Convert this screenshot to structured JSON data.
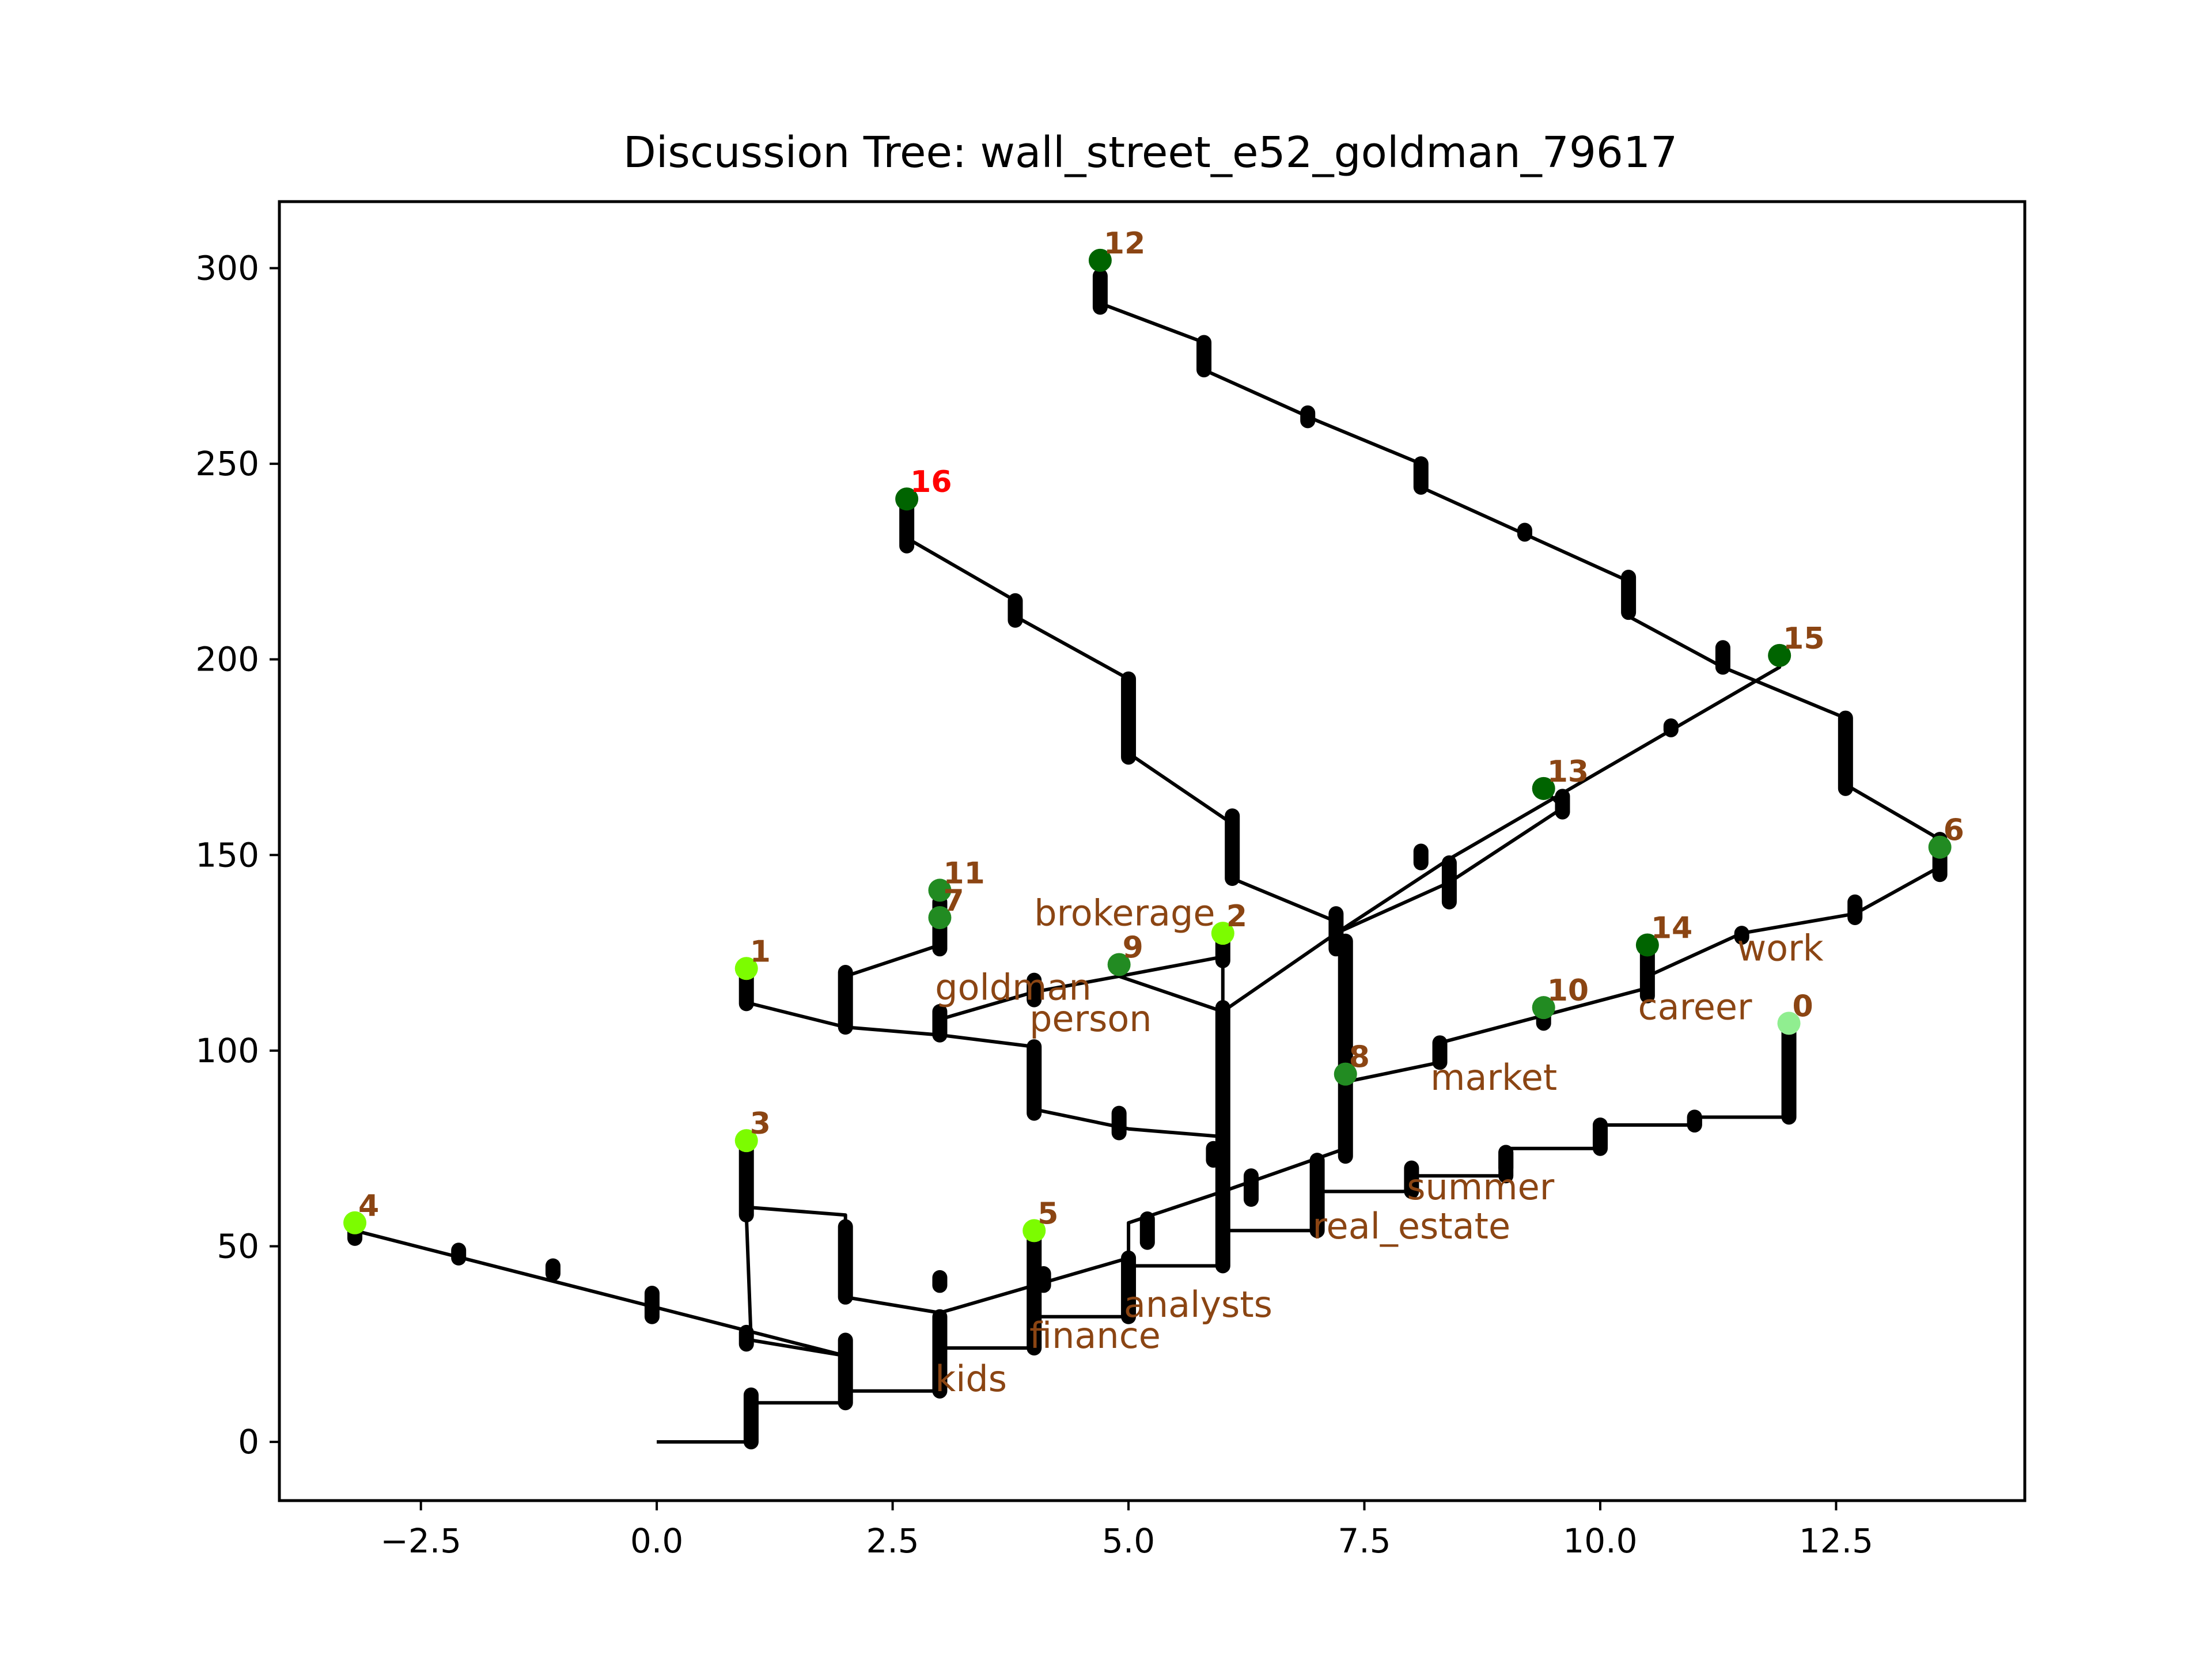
{
  "chart_data": {
    "type": "scatter",
    "title": "Discussion Tree: wall_street_e52_goldman_79617",
    "xlabel": "",
    "ylabel": "",
    "xlim": [
      -4.0,
      14.5
    ],
    "ylim": [
      -15,
      317
    ],
    "xticks": [
      -2.5,
      0.0,
      2.5,
      5.0,
      7.5,
      10.0,
      12.5
    ],
    "xtick_labels": [
      "−2.5",
      "0.0",
      "2.5",
      "5.0",
      "7.5",
      "10.0",
      "12.5"
    ],
    "yticks": [
      0,
      50,
      100,
      150,
      200,
      250,
      300
    ],
    "ytick_labels": [
      "0",
      "50",
      "100",
      "150",
      "200",
      "250",
      "300"
    ],
    "grid": false,
    "edge_color": "#000000",
    "edges": [
      [
        [
          0,
          0
        ],
        [
          1,
          0
        ],
        [
          1,
          10
        ],
        [
          2,
          10
        ],
        [
          2,
          13
        ],
        [
          3,
          13
        ],
        [
          3,
          24
        ],
        [
          4,
          24
        ],
        [
          4,
          32
        ],
        [
          5,
          32
        ],
        [
          5,
          45
        ],
        [
          6,
          45
        ],
        [
          6,
          54
        ],
        [
          7,
          54
        ],
        [
          7,
          64
        ],
        [
          8,
          64
        ],
        [
          8,
          68
        ],
        [
          9,
          68
        ],
        [
          9,
          75
        ],
        [
          10,
          75
        ],
        [
          10,
          81
        ],
        [
          11,
          81
        ],
        [
          11,
          83
        ],
        [
          12,
          83
        ],
        [
          12,
          107
        ]
      ],
      [
        [
          2,
          13
        ],
        [
          2,
          22
        ],
        [
          -3.2,
          54
        ]
      ],
      [
        [
          2,
          22
        ],
        [
          1,
          26
        ],
        [
          0.95,
          58
        ],
        [
          0.95,
          77
        ]
      ],
      [
        [
          3,
          24
        ],
        [
          3,
          33
        ],
        [
          2,
          37
        ],
        [
          2,
          58
        ],
        [
          0.95,
          60
        ],
        [
          0.95,
          77
        ]
      ],
      [
        [
          3,
          33
        ],
        [
          4,
          40
        ],
        [
          4,
          54
        ]
      ],
      [
        [
          4,
          40
        ],
        [
          5,
          47
        ],
        [
          5,
          56
        ],
        [
          6,
          64
        ],
        [
          7.3,
          75
        ]
      ],
      [
        [
          7.3,
          75
        ],
        [
          7.3,
          94
        ]
      ],
      [
        [
          7.3,
          75
        ],
        [
          7.3,
          94
        ]
      ],
      [
        [
          6,
          45
        ],
        [
          6,
          78
        ],
        [
          5,
          80
        ],
        [
          4,
          85
        ],
        [
          4,
          101
        ],
        [
          3,
          104
        ],
        [
          2,
          106
        ],
        [
          2,
          119
        ],
        [
          3,
          127
        ],
        [
          3,
          141
        ]
      ],
      [
        [
          2,
          106
        ],
        [
          1,
          112
        ],
        [
          0.95,
          121
        ]
      ],
      [
        [
          3,
          104
        ],
        [
          3,
          108
        ],
        [
          4,
          115
        ],
        [
          4.9,
          119
        ],
        [
          4.9,
          122
        ]
      ],
      [
        [
          4.9,
          119
        ],
        [
          6,
          110
        ],
        [
          6,
          124
        ],
        [
          6,
          130
        ]
      ],
      [
        [
          4.9,
          119
        ],
        [
          6,
          124
        ]
      ],
      [
        [
          6,
          110
        ],
        [
          7.2,
          130
        ],
        [
          8.4,
          143
        ],
        [
          9.6,
          162
        ],
        [
          9.4,
          167
        ]
      ],
      [
        [
          7.2,
          130
        ],
        [
          8.4,
          149
        ],
        [
          11.9,
          198
        ],
        [
          11.9,
          201
        ]
      ],
      [
        [
          7.2,
          127
        ],
        [
          7.2,
          133
        ],
        [
          6.1,
          144
        ],
        [
          6.1,
          158
        ],
        [
          5,
          176
        ],
        [
          5,
          195
        ],
        [
          3.8,
          211
        ],
        [
          3.8,
          215
        ],
        [
          2.65,
          231
        ],
        [
          2.65,
          241
        ]
      ],
      [
        [
          7.3,
          92
        ],
        [
          8.3,
          97
        ],
        [
          8.3,
          102
        ],
        [
          9.4,
          109
        ],
        [
          10.5,
          116
        ],
        [
          10.5,
          127
        ]
      ],
      [
        [
          10.5,
          119
        ],
        [
          11.5,
          130
        ],
        [
          12.7,
          135
        ],
        [
          13.6,
          147
        ],
        [
          13.6,
          152
        ]
      ],
      [
        [
          13.6,
          154
        ],
        [
          12.6,
          168
        ],
        [
          12.6,
          185
        ],
        [
          11.3,
          198
        ],
        [
          10.3,
          211
        ],
        [
          10.3,
          220
        ],
        [
          9.2,
          232
        ],
        [
          8.1,
          244
        ],
        [
          8.1,
          250
        ],
        [
          7.0,
          261
        ],
        [
          5.8,
          274
        ],
        [
          5.8,
          281
        ],
        [
          4.7,
          291
        ],
        [
          4.7,
          302
        ]
      ]
    ],
    "ticks": [
      [
        1,
        0,
        12
      ],
      [
        2,
        10,
        26
      ],
      [
        3,
        13,
        32
      ],
      [
        4,
        24,
        54
      ],
      [
        5,
        32,
        47
      ],
      [
        6,
        45,
        111
      ],
      [
        7,
        54,
        72
      ],
      [
        8,
        64,
        70
      ],
      [
        9,
        68,
        74
      ],
      [
        10,
        75,
        81
      ],
      [
        11,
        81,
        83
      ],
      [
        12,
        83,
        107
      ],
      [
        0.95,
        58,
        77
      ],
      [
        2,
        37,
        55
      ],
      [
        -3.2,
        52,
        56
      ],
      [
        -2.1,
        47,
        49
      ],
      [
        -1.1,
        43,
        45
      ],
      [
        -0.05,
        32,
        38
      ],
      [
        0.95,
        25,
        28
      ],
      [
        4,
        84,
        101
      ],
      [
        3,
        104,
        110
      ],
      [
        4.9,
        79,
        84
      ],
      [
        4,
        113,
        118
      ],
      [
        2,
        106,
        120
      ],
      [
        0.95,
        112,
        120
      ],
      [
        3,
        126,
        138
      ],
      [
        6,
        123,
        128
      ],
      [
        6.3,
        62,
        68
      ],
      [
        7.3,
        73,
        128
      ],
      [
        7.2,
        126,
        135
      ],
      [
        8.4,
        138,
        148
      ],
      [
        9.6,
        161,
        165
      ],
      [
        8.3,
        97,
        102
      ],
      [
        9.4,
        107,
        112
      ],
      [
        10.5,
        114,
        127
      ],
      [
        6.1,
        144,
        160
      ],
      [
        5,
        175,
        195
      ],
      [
        3.8,
        210,
        215
      ],
      [
        2.65,
        229,
        239
      ],
      [
        4.7,
        290,
        298
      ],
      [
        5.8,
        274,
        281
      ],
      [
        6.9,
        261,
        263
      ],
      [
        8.1,
        244,
        250
      ],
      [
        9.2,
        232,
        233
      ],
      [
        10.3,
        212,
        221
      ],
      [
        11.3,
        198,
        203
      ],
      [
        12.6,
        167,
        185
      ],
      [
        13.6,
        145,
        154
      ],
      [
        12.7,
        134,
        138
      ],
      [
        11.5,
        129,
        130
      ],
      [
        8.1,
        148,
        151
      ],
      [
        10.75,
        182,
        183
      ],
      [
        3.0,
        40,
        42
      ],
      [
        4.1,
        40,
        43
      ],
      [
        5.2,
        51,
        57
      ],
      [
        5.9,
        72,
        75
      ],
      [
        9,
        70,
        74
      ],
      [
        10,
        76,
        80
      ],
      [
        11,
        81,
        83
      ]
    ],
    "nodes": [
      {
        "id": "0",
        "x": 12.0,
        "y": 107,
        "color": "#90ee90"
      },
      {
        "id": "1",
        "x": 0.95,
        "y": 121,
        "color": "#7cfc00"
      },
      {
        "id": "2",
        "x": 6.0,
        "y": 130,
        "color": "#7cfc00"
      },
      {
        "id": "3",
        "x": 0.95,
        "y": 77,
        "color": "#7cfc00"
      },
      {
        "id": "4",
        "x": -3.2,
        "y": 56,
        "color": "#7cfc00"
      },
      {
        "id": "5",
        "x": 4.0,
        "y": 54,
        "color": "#7cfc00"
      },
      {
        "id": "6",
        "x": 13.6,
        "y": 152,
        "color": "#228b22"
      },
      {
        "id": "7",
        "x": 3.0,
        "y": 134,
        "color": "#228b22"
      },
      {
        "id": "8",
        "x": 7.3,
        "y": 94,
        "color": "#228b22"
      },
      {
        "id": "9",
        "x": 4.9,
        "y": 122,
        "color": "#228b22"
      },
      {
        "id": "10",
        "x": 9.4,
        "y": 111,
        "color": "#228b22"
      },
      {
        "id": "11",
        "x": 3.0,
        "y": 141,
        "color": "#228b22"
      },
      {
        "id": "12",
        "x": 4.7,
        "y": 302,
        "color": "#006400"
      },
      {
        "id": "13",
        "x": 9.4,
        "y": 167,
        "color": "#006400"
      },
      {
        "id": "14",
        "x": 10.5,
        "y": 127,
        "color": "#006400"
      },
      {
        "id": "15",
        "x": 11.9,
        "y": 201,
        "color": "#006400"
      },
      {
        "id": "16",
        "x": 2.65,
        "y": 241,
        "color": "#006400"
      }
    ],
    "node_label_color": "#8b4513",
    "highlight_label_color": "#ff0000",
    "highlight_node": "16",
    "keywords": [
      {
        "text": "brokerage",
        "x": 4.0,
        "y": 132
      },
      {
        "text": "goldman",
        "x": 2.95,
        "y": 113
      },
      {
        "text": "person",
        "x": 3.95,
        "y": 105
      },
      {
        "text": "work",
        "x": 11.45,
        "y": 123
      },
      {
        "text": "career",
        "x": 10.4,
        "y": 108
      },
      {
        "text": "market",
        "x": 8.2,
        "y": 90
      },
      {
        "text": "summer",
        "x": 7.95,
        "y": 62
      },
      {
        "text": "real_estate",
        "x": 6.95,
        "y": 52
      },
      {
        "text": "analysts",
        "x": 4.95,
        "y": 32
      },
      {
        "text": "finance",
        "x": 3.95,
        "y": 24
      },
      {
        "text": "kids",
        "x": 2.95,
        "y": 13
      }
    ]
  }
}
